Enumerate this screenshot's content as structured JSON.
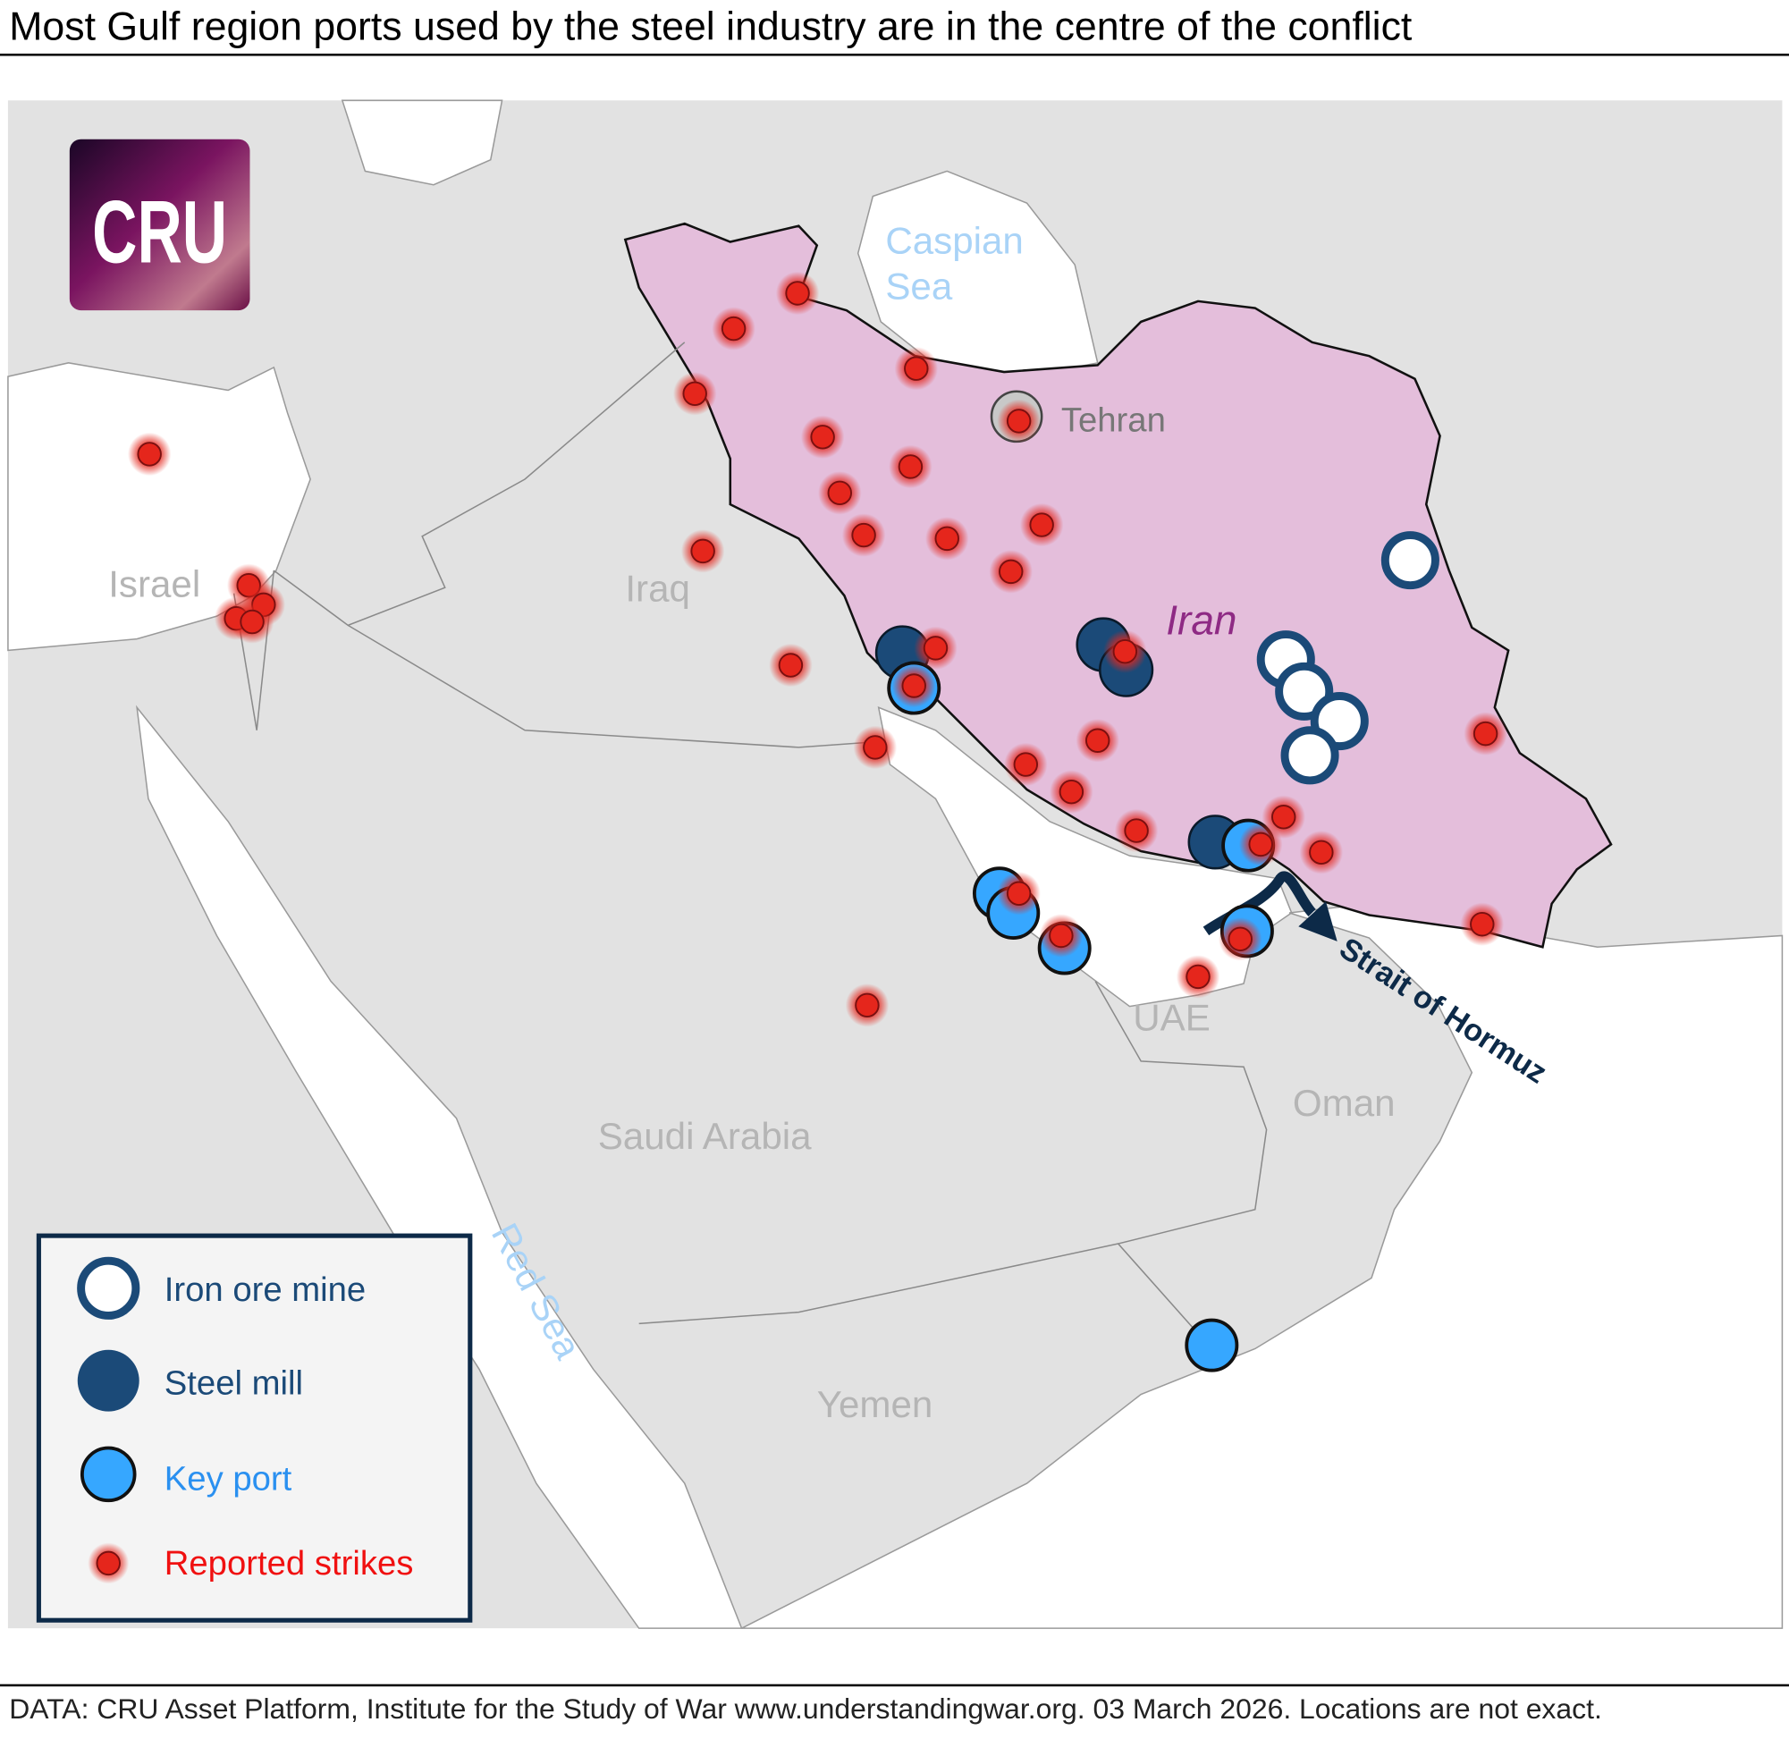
{
  "title": "Most Gulf region ports used by the steel industry are in the centre of the conflict",
  "footer": "DATA: CRU Asset Platform, Institute for the Study of War www.understandingwar.org. 03 March 2026. Locations are not exact.",
  "logo": "CRU",
  "labels": {
    "caspian_1": "Caspian",
    "caspian_2": "Sea",
    "tehran": "Tehran",
    "iran": "Iran",
    "iraq": "Iraq",
    "israel": "Israel",
    "saudi_arabia": "Saudi Arabia",
    "uae": "UAE",
    "oman": "Oman",
    "yemen": "Yemen",
    "red_sea": "Red Sea",
    "strait": "Strait of Hormuz"
  },
  "legend": {
    "iron_ore_mine": "Iron ore mine",
    "steel_mill": "Steel mill",
    "key_port": "Key port",
    "reported_strikes": "Reported strikes"
  },
  "colors": {
    "iran_fill": "#e4bedb",
    "land": "#e2e2e2",
    "steel_mill": "#1b4a78",
    "key_port": "#36a7ff",
    "strike": "#e5261c",
    "sea_label": "#a9d3f7",
    "iran_label": "#8e2a84"
  }
}
